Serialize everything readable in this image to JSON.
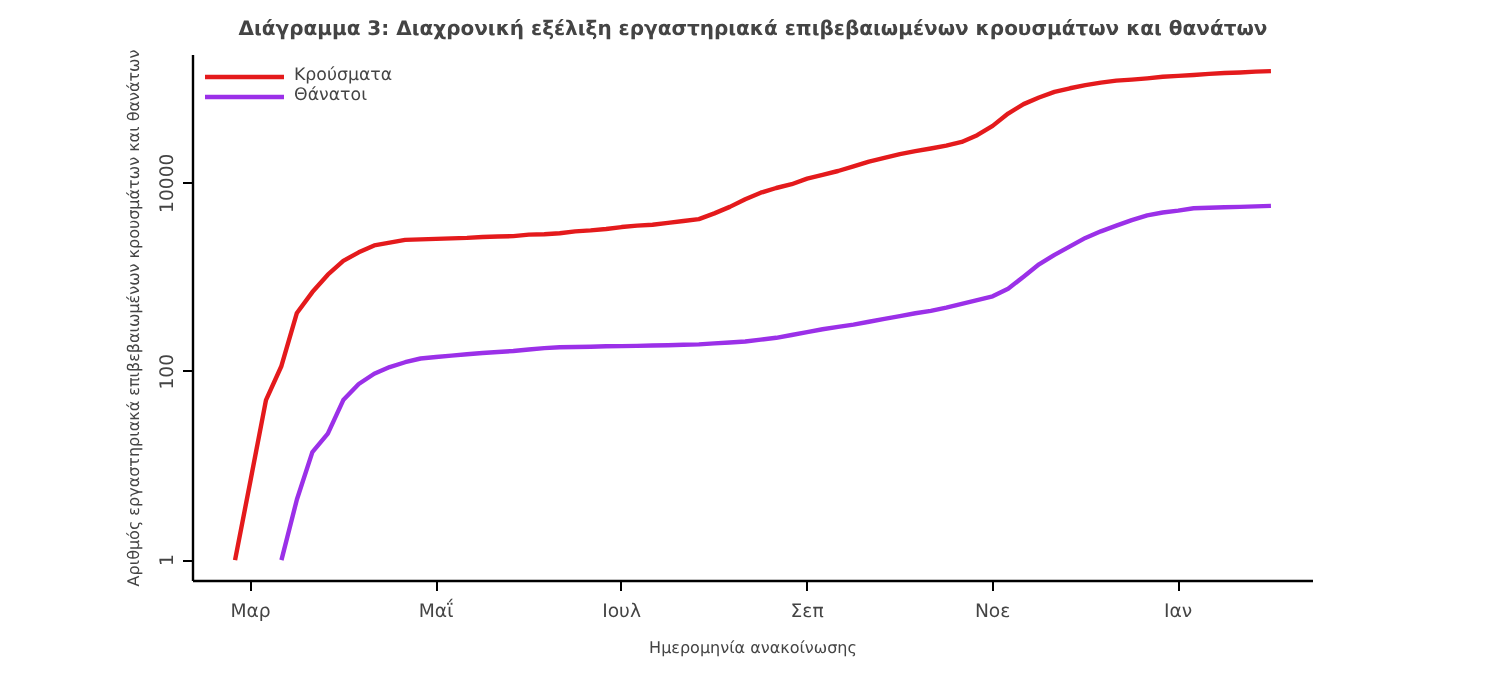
{
  "chart_data": {
    "type": "line",
    "title": "Διάγραμμα 3: Διαχρονική εξέλιξη εργαστηριακά επιβεβαιωμένων κρουσμάτων και θανάτων",
    "xlabel": "Ημερομηνία ανακοίνωσης",
    "ylabel": "Αριθμός εργαστηριακά επιβεβαιωμένων κρουσμάτων και θανάτων",
    "log": "y",
    "legend": "top left",
    "line_style": "solid",
    "ylim": [
      0.6,
      230000
    ],
    "yticks": [
      1,
      100,
      10000
    ],
    "categories": [
      null,
      "Μαρ",
      null,
      null,
      null,
      null,
      null,
      null,
      null,
      null,
      null,
      null,
      null,
      "Μαΐ",
      null,
      null,
      null,
      null,
      null,
      null,
      null,
      null,
      null,
      null,
      null,
      "Ιουλ",
      null,
      null,
      null,
      null,
      null,
      null,
      null,
      null,
      null,
      null,
      null,
      "Σεπ",
      null,
      null,
      null,
      null,
      null,
      null,
      null,
      null,
      null,
      null,
      null,
      "Νοε",
      null,
      null,
      null,
      null,
      null,
      null,
      null,
      null,
      null,
      null,
      null,
      "Ιαν",
      null,
      null,
      null,
      null,
      null,
      null
    ],
    "series": [
      {
        "name": "Κρούσματα",
        "color": "#e41a1c",
        "values": [
          1,
          7,
          50,
          115,
          420,
          700,
          1070,
          1500,
          1850,
          2190,
          2340,
          2510,
          2540,
          2570,
          2600,
          2630,
          2690,
          2720,
          2750,
          2850,
          2880,
          2950,
          3090,
          3160,
          3270,
          3430,
          3550,
          3630,
          3800,
          3980,
          4170,
          4790,
          5620,
          6760,
          7940,
          8910,
          9770,
          11200,
          12300,
          13500,
          15100,
          17000,
          18600,
          20400,
          21900,
          23400,
          25100,
          27500,
          32400,
          40700,
          55000,
          69200,
          81300,
          93300,
          102000,
          110000,
          117000,
          123000,
          126000,
          130000,
          135000,
          138000,
          141000,
          145000,
          148000,
          150000,
          153000,
          155000
        ]
      },
      {
        "name": "Θάνατοι",
        "color": "#9b30e8",
        "values": [
          null,
          null,
          null,
          1,
          4.4,
          14,
          22,
          50,
          74,
          95,
          112,
          126,
          138,
          143,
          148,
          153,
          158,
          162,
          166,
          172,
          178,
          182,
          183,
          184,
          186,
          187,
          188,
          190,
          191,
          193,
          195,
          200,
          204,
          209,
          219,
          229,
          245,
          263,
          282,
          299,
          316,
          339,
          363,
          389,
          417,
          442,
          479,
          525,
          575,
          631,
          759,
          1020,
          1380,
          1740,
          2140,
          2630,
          3090,
          3550,
          4070,
          4570,
          4900,
          5130,
          5430,
          5500,
          5560,
          5620,
          5690,
          5750
        ]
      }
    ]
  }
}
